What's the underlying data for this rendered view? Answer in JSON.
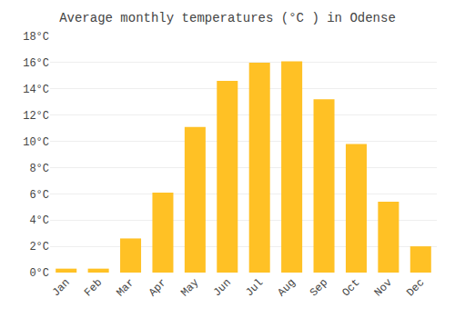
{
  "chart_data": {
    "type": "bar",
    "title": "Average monthly temperatures (°C ) in Odense",
    "categories": [
      "Jan",
      "Feb",
      "Mar",
      "Apr",
      "May",
      "Jun",
      "Jul",
      "Aug",
      "Sep",
      "Oct",
      "Nov",
      "Dec"
    ],
    "values": [
      0.3,
      0.3,
      2.6,
      6.1,
      11.1,
      14.6,
      16.0,
      16.1,
      13.2,
      9.8,
      5.4,
      2.0
    ],
    "color": "#FFC125",
    "ylim": [
      0,
      18
    ],
    "yticks": [
      {
        "value": 0,
        "label": "0°C"
      },
      {
        "value": 2,
        "label": "2°C"
      },
      {
        "value": 4,
        "label": "4°C"
      },
      {
        "value": 6,
        "label": "6°C"
      },
      {
        "value": 8,
        "label": "8°C"
      },
      {
        "value": 10,
        "label": "10°C"
      },
      {
        "value": 12,
        "label": "12°C"
      },
      {
        "value": 14,
        "label": "14°C"
      },
      {
        "value": 16,
        "label": "16°C"
      },
      {
        "value": 18,
        "label": "18°C"
      }
    ],
    "grid": true
  }
}
